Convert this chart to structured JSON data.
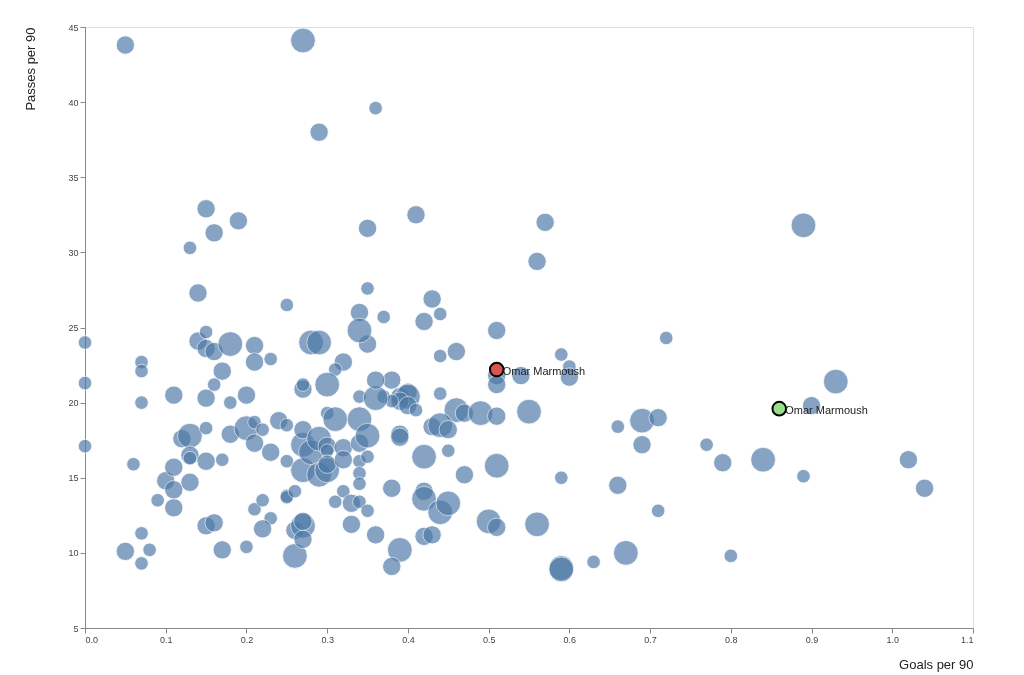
{
  "chart_data": {
    "type": "bubble",
    "xlabel": "Goals per 90",
    "ylabel": "Passes per 90",
    "xlim": [
      0,
      1.1
    ],
    "xticks": [
      {
        "value": 0,
        "label": "0.0"
      },
      0.1,
      0.2,
      0.3,
      0.4,
      0.5,
      0.6,
      0.7,
      0.8,
      0.9,
      {
        "value": 1,
        "label": "1.0"
      },
      1.1
    ],
    "ylim": [
      5,
      45
    ],
    "yticks": [
      5,
      10,
      15,
      20,
      25,
      30,
      35,
      40,
      45
    ],
    "grid": false,
    "series": [
      {
        "color": "#4e79a7",
        "x": [
          0.05,
          0.27,
          0.36,
          0.29,
          0.15,
          0.19,
          0.16,
          0.13,
          0.14,
          0.25,
          0.35,
          0.35,
          0.34,
          0.37,
          0.41,
          0.57,
          0.56,
          0.43,
          0.44,
          0.42,
          0.89,
          0.51,
          0.46,
          0.44,
          0.59,
          0.6,
          0.6,
          0.51,
          0.51,
          0.54,
          0.72,
          0.38,
          0.37,
          0.39,
          0.4,
          0.4,
          0.39,
          0.4,
          0.41,
          0.38,
          0.44,
          0.46,
          0.47,
          0.49,
          0.51,
          0.55,
          0.43,
          0.44,
          0.45,
          0.39,
          0.39,
          0.42,
          0.45,
          0.47,
          0.51,
          0.59,
          0.66,
          0.69,
          0.71,
          0.69,
          0.66,
          0.71,
          0.38,
          0.42,
          0.42,
          0.44,
          0.45,
          0.42,
          0.43,
          0.39,
          0.38,
          0.5,
          0.51,
          0.56,
          0.59,
          0.59,
          0.63,
          0.67,
          0.93,
          0.9,
          0.77,
          0.79,
          0.84,
          0.89,
          1.02,
          1.04,
          0.8,
          0,
          0,
          0,
          0.07,
          0.07,
          0.07,
          0.11,
          0.06,
          0.05,
          0.07,
          0.07,
          0.08,
          0.09,
          0.11,
          0.1,
          0.11,
          0.11,
          0.13,
          0.12,
          0.13,
          0.13,
          0.13,
          0.15,
          0.15,
          0.17,
          0.15,
          0.16,
          0.17,
          0.18,
          0.18,
          0.14,
          0.15,
          0.15,
          0.16,
          0.18,
          0.21,
          0.21,
          0.23,
          0.2,
          0.2,
          0.21,
          0.21,
          0.22,
          0.23,
          0.24,
          0.25,
          0.25,
          0.25,
          0.25,
          0.26,
          0.21,
          0.22,
          0.23,
          0.22,
          0.15,
          0.16,
          0.17,
          0.2,
          0.26,
          0.26,
          0.27,
          0.27,
          0.27,
          0.27,
          0.27,
          0.27,
          0.28,
          0.29,
          0.29,
          0.3,
          0.3,
          0.3,
          0.3,
          0.3,
          0.31,
          0.32,
          0.32,
          0.32,
          0.31,
          0.33,
          0.33,
          0.34,
          0.34,
          0.35,
          0.34,
          0.34,
          0.34,
          0.34,
          0.35,
          0.35,
          0.36,
          0.34,
          0.36,
          0.36,
          0.35,
          0.34,
          0.28,
          0.29,
          0.32,
          0.31,
          0.3,
          0.27,
          0.27
        ],
        "values": [
          43.8,
          44.1,
          39.6,
          38.0,
          32.9,
          32.1,
          31.3,
          30.3,
          27.3,
          26.5,
          31.6,
          27.6,
          26.0,
          25.7,
          32.5,
          32.0,
          29.4,
          26.9,
          25.9,
          25.4,
          31.8,
          24.8,
          23.4,
          23.1,
          23.2,
          22.4,
          21.7,
          21.8,
          21.2,
          21.8,
          24.3,
          21.5,
          20.4,
          20.4,
          20.7,
          20.4,
          20.1,
          19.8,
          19.5,
          20.1,
          20.6,
          19.5,
          19.3,
          19.3,
          19.1,
          19.4,
          18.4,
          18.5,
          18.2,
          17.9,
          17.7,
          16.4,
          16.8,
          15.2,
          15.8,
          15.0,
          18.4,
          18.8,
          19.0,
          17.2,
          14.5,
          12.8,
          14.3,
          14.1,
          13.6,
          12.7,
          13.3,
          11.1,
          11.2,
          10.2,
          9.1,
          12.1,
          11.7,
          11.9,
          9.0,
          8.9,
          9.4,
          10.0,
          21.4,
          19.8,
          17.2,
          16.0,
          16.2,
          15.1,
          16.2,
          14.3,
          9.8,
          24.0,
          21.3,
          17.1,
          22.7,
          22.1,
          20.0,
          20.5,
          15.9,
          10.1,
          11.3,
          9.3,
          10.2,
          13.5,
          13.0,
          14.8,
          14.2,
          15.7,
          14.7,
          17.6,
          17.8,
          16.5,
          16.3,
          18.3,
          16.1,
          16.2,
          20.3,
          21.2,
          22.1,
          20.0,
          17.9,
          24.1,
          24.7,
          23.6,
          23.4,
          23.9,
          23.8,
          22.7,
          22.9,
          20.5,
          18.3,
          18.7,
          17.3,
          18.2,
          16.7,
          18.8,
          18.5,
          16.1,
          13.8,
          13.7,
          14.1,
          12.9,
          13.5,
          12.3,
          11.6,
          11.8,
          12.0,
          10.2,
          10.4,
          9.8,
          11.5,
          11.8,
          12.1,
          10.9,
          17.2,
          18.2,
          15.5,
          16.7,
          17.6,
          15.2,
          15.5,
          17.1,
          16.8,
          15.9,
          19.3,
          18.9,
          17.0,
          16.2,
          14.1,
          13.4,
          13.3,
          11.9,
          18.9,
          17.3,
          17.8,
          16.1,
          15.3,
          14.6,
          13.4,
          12.8,
          16.4,
          11.2,
          20.4,
          20.3,
          21.5,
          23.9,
          24.8,
          24.0,
          24.0,
          22.7,
          22.2,
          21.2,
          20.9,
          21.2
        ],
        "sizes": [
          0.55,
          1,
          0.3,
          0.55,
          0.55,
          0.55,
          0.55,
          0.3,
          0.55,
          0.3,
          0.55,
          0.3,
          0.55,
          0.3,
          0.55,
          0.55,
          0.55,
          0.55,
          0.3,
          0.55,
          1,
          0.55,
          0.55,
          0.3,
          0.3,
          0.3,
          0.55,
          0.55,
          0.55,
          0.55,
          0.3,
          0.55,
          0.3,
          0.55,
          0.55,
          1,
          0.55,
          0.55,
          0.3,
          0.3,
          0.3,
          1,
          0.55,
          1,
          0.55,
          1,
          0.55,
          1,
          0.55,
          0.55,
          0.55,
          1,
          0.3,
          0.55,
          1,
          0.3,
          0.3,
          1,
          0.55,
          0.55,
          0.55,
          0.3,
          0.55,
          0.55,
          1,
          1,
          1,
          0.55,
          0.55,
          1,
          0.55,
          1,
          0.55,
          1,
          1,
          1,
          0.3,
          1,
          1,
          0.55,
          0.3,
          0.55,
          1,
          0.3,
          0.55,
          0.55,
          0.3,
          0.3,
          0.3,
          0.3,
          0.3,
          0.3,
          0.3,
          0.55,
          0.3,
          0.55,
          0.3,
          0.3,
          0.3,
          0.3,
          0.55,
          0.55,
          0.55,
          0.55,
          0.55,
          0.55,
          1,
          0.55,
          0.3,
          0.3,
          0.55,
          0.3,
          0.55,
          0.3,
          0.55,
          0.3,
          0.55,
          0.55,
          0.3,
          0.55,
          0.55,
          1,
          0.55,
          0.55,
          0.3,
          0.55,
          1,
          0.3,
          0.55,
          0.3,
          0.55,
          0.55,
          0.3,
          0.3,
          0.3,
          0.3,
          0.3,
          0.3,
          0.3,
          0.3,
          0.55,
          0.55,
          0.55,
          0.55,
          0.3,
          1,
          0.55,
          1,
          0.55,
          0.55,
          1,
          0.55,
          1,
          1,
          1,
          1,
          1,
          0.55,
          0.3,
          0.55,
          0.3,
          1,
          0.55,
          0.55,
          0.3,
          0.3,
          0.55,
          0.55,
          1,
          0.55,
          1,
          0.3,
          0.3,
          0.3,
          0.3,
          0.3,
          0.3,
          0.55,
          0.3,
          1,
          0.55,
          0.55,
          1,
          1,
          1,
          0.55,
          0.3,
          1,
          0.55,
          0.3
        ]
      },
      {
        "color": "#d9534f",
        "x": [
          0.51
        ],
        "values": [
          22.2
        ],
        "sizes": [
          0.3
        ]
      },
      {
        "color": "#98df8a",
        "x": [
          0.86
        ],
        "values": [
          19.6
        ],
        "sizes": [
          0.3
        ]
      }
    ],
    "annotations": [
      {
        "text": "Omar Marmoush",
        "x": 0.51,
        "y": 22.2
      },
      {
        "text": "Omar Marmoush",
        "x": 0.86,
        "y": 19.6
      }
    ]
  }
}
